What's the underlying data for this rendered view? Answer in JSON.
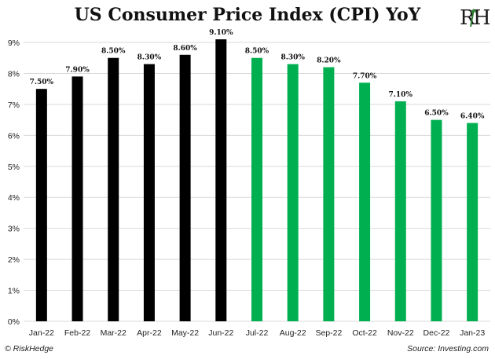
{
  "chart_data": {
    "type": "bar",
    "title": "US Consumer Price Index (CPI) YoY",
    "categories": [
      "Jan-22",
      "Feb-22",
      "Mar-22",
      "Apr-22",
      "May-22",
      "Jun-22",
      "Jul-22",
      "Aug-22",
      "Sep-22",
      "Oct-22",
      "Nov-22",
      "Dec-22",
      "Jan-23"
    ],
    "values": [
      7.5,
      7.9,
      8.5,
      8.3,
      8.6,
      9.1,
      8.5,
      8.3,
      8.2,
      7.7,
      7.1,
      6.5,
      6.4
    ],
    "data_labels": [
      "7.50%",
      "7.90%",
      "8.50%",
      "8.30%",
      "8.60%",
      "9.10%",
      "8.50%",
      "8.30%",
      "8.20%",
      "7.70%",
      "7.10%",
      "6.50%",
      "6.40%"
    ],
    "bar_colors": [
      "#000000",
      "#000000",
      "#000000",
      "#000000",
      "#000000",
      "#000000",
      "#00b050",
      "#00b050",
      "#00b050",
      "#00b050",
      "#00b050",
      "#00b050",
      "#00b050"
    ],
    "ylim": [
      0,
      9
    ],
    "yticks": [
      0,
      1,
      2,
      3,
      4,
      5,
      6,
      7,
      8,
      9
    ],
    "ytick_labels": [
      "0%",
      "1%",
      "2%",
      "3%",
      "4%",
      "5%",
      "6%",
      "7%",
      "8%",
      "9%"
    ],
    "grid": true,
    "xlabel": "",
    "ylabel": ""
  },
  "brand": {
    "logo_text": "RH",
    "logo_color": "#1a1a1a",
    "logo_accent": "#2e7d32",
    "copyright": "© RiskHedge"
  },
  "source": "Source: Investing.com"
}
